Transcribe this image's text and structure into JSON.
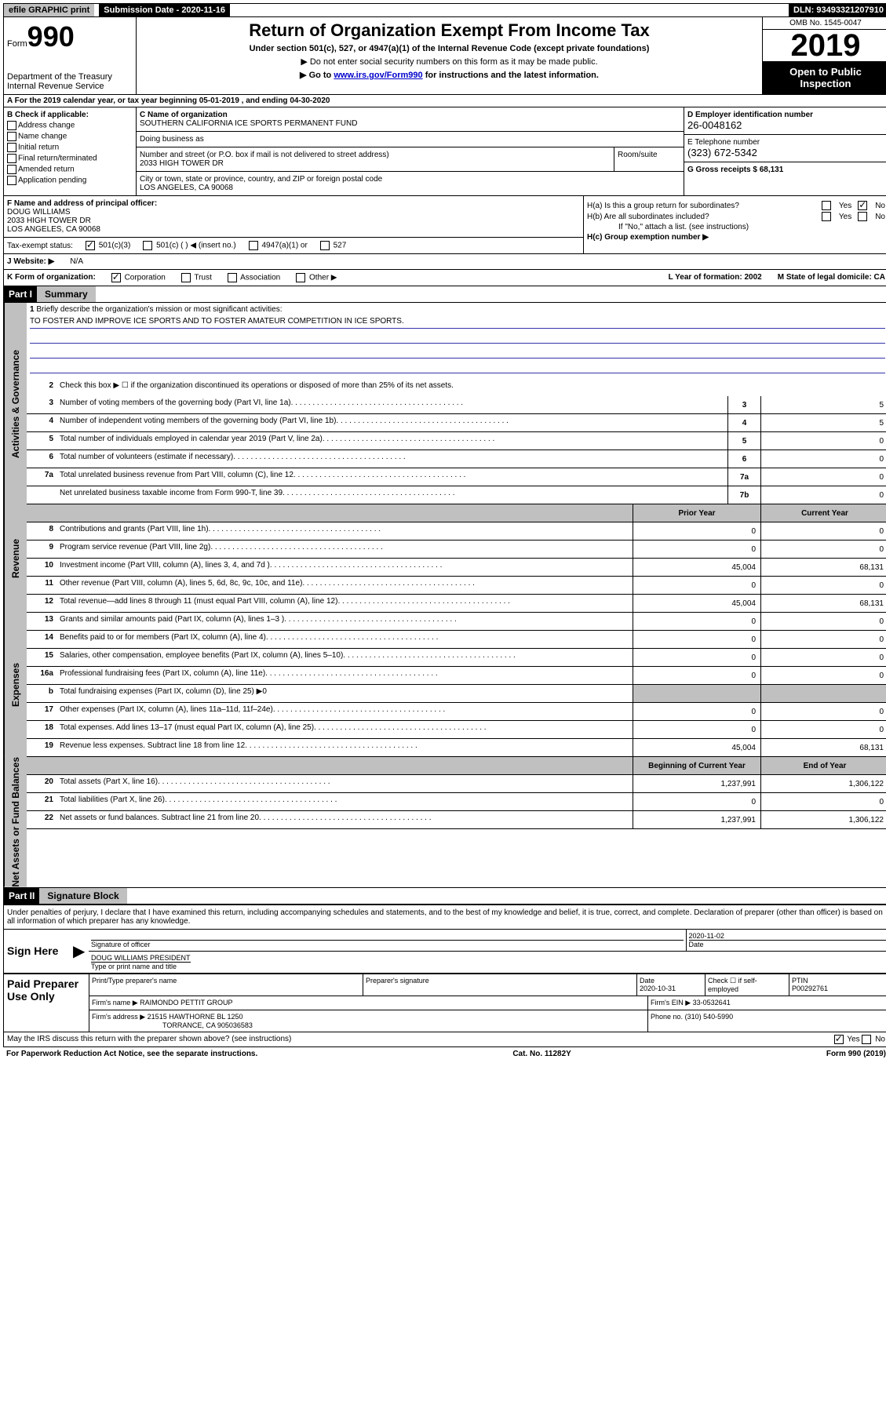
{
  "topbar": {
    "efile": "efile GRAPHIC print",
    "submission": "Submission Date - 2020-11-16",
    "dln": "DLN: 93493321207910"
  },
  "header": {
    "form_prefix": "Form",
    "form_number": "990",
    "dept": "Department of the Treasury Internal Revenue Service",
    "title": "Return of Organization Exempt From Income Tax",
    "subtitle": "Under section 501(c), 527, or 4947(a)(1) of the Internal Revenue Code (except private foundations)",
    "note1": "▶ Do not enter social security numbers on this form as it may be made public.",
    "note2_pre": "▶ Go to ",
    "note2_link": "www.irs.gov/Form990",
    "note2_post": " for instructions and the latest information.",
    "omb": "OMB No. 1545-0047",
    "year": "2019",
    "open": "Open to Public Inspection"
  },
  "lineA": "A For the 2019 calendar year, or tax year beginning 05-01-2019    , and ending 04-30-2020",
  "colB": {
    "header": "B Check if applicable:",
    "items": [
      "Address change",
      "Name change",
      "Initial return",
      "Final return/terminated",
      "Amended return",
      "Application pending"
    ]
  },
  "colC": {
    "name_label": "C Name of organization",
    "name": "SOUTHERN CALIFORNIA ICE SPORTS PERMANENT FUND",
    "dba_label": "Doing business as",
    "addr_label": "Number and street (or P.O. box if mail is not delivered to street address)",
    "room_label": "Room/suite",
    "addr": "2033 HIGH TOWER DR",
    "city_label": "City or town, state or province, country, and ZIP or foreign postal code",
    "city": "LOS ANGELES, CA  90068"
  },
  "colD": {
    "ein_label": "D Employer identification number",
    "ein": "26-0048162",
    "phone_label": "E Telephone number",
    "phone": "(323) 672-5342",
    "gross_label": "G Gross receipts $ 68,131"
  },
  "colF": {
    "label": "F Name and address of principal officer:",
    "name": "DOUG WILLIAMS",
    "addr1": "2033 HIGH TOWER DR",
    "addr2": "LOS ANGELES, CA  90068"
  },
  "colH": {
    "ha": "H(a)  Is this a group return for subordinates?",
    "hb": "H(b)  Are all subordinates included?",
    "hb_note": "If \"No,\" attach a list. (see instructions)",
    "hc": "H(c)  Group exemption number ▶"
  },
  "taxStatus": {
    "label": "Tax-exempt status:",
    "c3": "501(c)(3)",
    "c": "501(c) (  ) ◀ (insert no.)",
    "a1": "4947(a)(1) or",
    "s527": "527"
  },
  "websiteJ": {
    "label": "J  Website: ▶",
    "val": "N/A"
  },
  "rowK": {
    "label": "K Form of organization:",
    "corp": "Corporation",
    "trust": "Trust",
    "assoc": "Association",
    "other": "Other ▶",
    "year_label": "L Year of formation: 2002",
    "state_label": "M State of legal domicile: CA"
  },
  "part1": {
    "header": "Part I",
    "title": "Summary"
  },
  "vtabs": {
    "gov": "Activities & Governance",
    "rev": "Revenue",
    "exp": "Expenses",
    "net": "Net Assets or Fund Balances"
  },
  "summary": {
    "l1": "Briefly describe the organization's mission or most significant activities:",
    "l1_text": "TO FOSTER AND IMPROVE ICE SPORTS AND TO FOSTER AMATEUR COMPETITION IN ICE SPORTS.",
    "l2": "Check this box ▶ ☐ if the organization discontinued its operations or disposed of more than 25% of its net assets.",
    "rows": [
      {
        "n": "3",
        "d": "Number of voting members of the governing body (Part VI, line 1a)",
        "b": "3",
        "v": "5"
      },
      {
        "n": "4",
        "d": "Number of independent voting members of the governing body (Part VI, line 1b)",
        "b": "4",
        "v": "5"
      },
      {
        "n": "5",
        "d": "Total number of individuals employed in calendar year 2019 (Part V, line 2a)",
        "b": "5",
        "v": "0"
      },
      {
        "n": "6",
        "d": "Total number of volunteers (estimate if necessary)",
        "b": "6",
        "v": "0"
      },
      {
        "n": "7a",
        "d": "Total unrelated business revenue from Part VIII, column (C), line 12",
        "b": "7a",
        "v": "0"
      },
      {
        "n": "",
        "d": "Net unrelated business taxable income from Form 990-T, line 39",
        "b": "7b",
        "v": "0"
      }
    ],
    "col_prior": "Prior Year",
    "col_current": "Current Year",
    "rev_rows": [
      {
        "n": "8",
        "d": "Contributions and grants (Part VIII, line 1h)",
        "p": "0",
        "c": "0"
      },
      {
        "n": "9",
        "d": "Program service revenue (Part VIII, line 2g)",
        "p": "0",
        "c": "0"
      },
      {
        "n": "10",
        "d": "Investment income (Part VIII, column (A), lines 3, 4, and 7d )",
        "p": "45,004",
        "c": "68,131"
      },
      {
        "n": "11",
        "d": "Other revenue (Part VIII, column (A), lines 5, 6d, 8c, 9c, 10c, and 11e)",
        "p": "0",
        "c": "0"
      },
      {
        "n": "12",
        "d": "Total revenue—add lines 8 through 11 (must equal Part VIII, column (A), line 12)",
        "p": "45,004",
        "c": "68,131"
      }
    ],
    "exp_rows": [
      {
        "n": "13",
        "d": "Grants and similar amounts paid (Part IX, column (A), lines 1–3 )",
        "p": "0",
        "c": "0"
      },
      {
        "n": "14",
        "d": "Benefits paid to or for members (Part IX, column (A), line 4)",
        "p": "0",
        "c": "0"
      },
      {
        "n": "15",
        "d": "Salaries, other compensation, employee benefits (Part IX, column (A), lines 5–10)",
        "p": "0",
        "c": "0"
      },
      {
        "n": "16a",
        "d": "Professional fundraising fees (Part IX, column (A), line 11e)",
        "p": "0",
        "c": "0"
      }
    ],
    "exp_b": "Total fundraising expenses (Part IX, column (D), line 25) ▶0",
    "exp_rows2": [
      {
        "n": "17",
        "d": "Other expenses (Part IX, column (A), lines 11a–11d, 11f–24e)",
        "p": "0",
        "c": "0"
      },
      {
        "n": "18",
        "d": "Total expenses. Add lines 13–17 (must equal Part IX, column (A), line 25)",
        "p": "0",
        "c": "0"
      },
      {
        "n": "19",
        "d": "Revenue less expenses. Subtract line 18 from line 12",
        "p": "45,004",
        "c": "68,131"
      }
    ],
    "col_begin": "Beginning of Current Year",
    "col_end": "End of Year",
    "net_rows": [
      {
        "n": "20",
        "d": "Total assets (Part X, line 16)",
        "p": "1,237,991",
        "c": "1,306,122"
      },
      {
        "n": "21",
        "d": "Total liabilities (Part X, line 26)",
        "p": "0",
        "c": "0"
      },
      {
        "n": "22",
        "d": "Net assets or fund balances. Subtract line 21 from line 20",
        "p": "1,237,991",
        "c": "1,306,122"
      }
    ]
  },
  "part2": {
    "header": "Part II",
    "title": "Signature Block"
  },
  "perjury": "Under penalties of perjury, I declare that I have examined this return, including accompanying schedules and statements, and to the best of my knowledge and belief, it is true, correct, and complete. Declaration of preparer (other than officer) is based on all information of which preparer has any knowledge.",
  "sign": {
    "here": "Sign Here",
    "sig_label": "Signature of officer",
    "date": "2020-11-02",
    "date_label": "Date",
    "name": "DOUG WILLIAMS  PRESIDENT",
    "name_label": "Type or print name and title"
  },
  "paid": {
    "header": "Paid Preparer Use Only",
    "prep_name_label": "Print/Type preparer's name",
    "prep_sig_label": "Preparer's signature",
    "prep_date_label": "Date",
    "prep_date": "2020-10-31",
    "check_label": "Check ☐ if self-employed",
    "ptin_label": "PTIN",
    "ptin": "P00292761",
    "firm_name_label": "Firm's name     ▶",
    "firm_name": "RAIMONDO PETTIT GROUP",
    "firm_ein_label": "Firm's EIN ▶",
    "firm_ein": "33-0532641",
    "firm_addr_label": "Firm's address ▶",
    "firm_addr1": "21515 HAWTHORNE BL 1250",
    "firm_addr2": "TORRANCE, CA  905036583",
    "phone_label": "Phone no.",
    "phone": "(310) 540-5990"
  },
  "footer": {
    "discuss": "May the IRS discuss this return with the preparer shown above? (see instructions)",
    "yes": "Yes",
    "no": "No",
    "paperwork": "For Paperwork Reduction Act Notice, see the separate instructions.",
    "cat": "Cat. No. 11282Y",
    "form": "Form 990 (2019)"
  }
}
